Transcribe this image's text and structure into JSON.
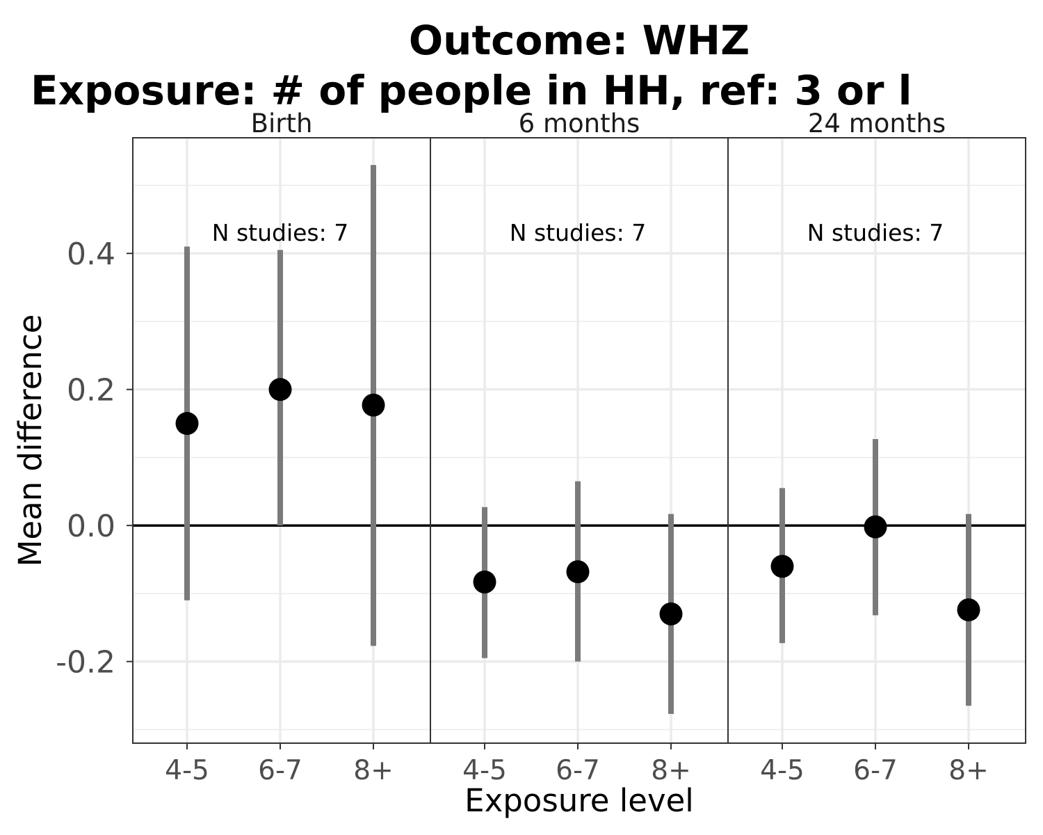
{
  "chart_data": {
    "type": "scatter",
    "title": "Outcome: WHZ",
    "subtitle": "Exposure: # of people in HH, ref: 3 or l",
    "xlabel": "Exposure level",
    "ylabel": "Mean difference",
    "ylim": [
      -0.32,
      0.57
    ],
    "y_ticks": [
      -0.2,
      0.0,
      0.2,
      0.4
    ],
    "y_tick_labels": [
      "-0.2",
      "0.0",
      "0.2",
      "0.4"
    ],
    "reference_line": 0.0,
    "grid": true,
    "categories": [
      "4-5",
      "6-7",
      "8+"
    ],
    "panels": [
      {
        "label": "Birth",
        "annotation": "N studies: 7",
        "points": [
          {
            "category": "4-5",
            "estimate": 0.15,
            "lower": -0.11,
            "upper": 0.41
          },
          {
            "category": "6-7",
            "estimate": 0.2,
            "lower": 0.0,
            "upper": 0.405
          },
          {
            "category": "8+",
            "estimate": 0.177,
            "lower": -0.177,
            "upper": 0.53
          }
        ]
      },
      {
        "label": "6 months",
        "annotation": "N studies: 7",
        "points": [
          {
            "category": "4-5",
            "estimate": -0.083,
            "lower": -0.195,
            "upper": 0.027
          },
          {
            "category": "6-7",
            "estimate": -0.068,
            "lower": -0.2,
            "upper": 0.065
          },
          {
            "category": "8+",
            "estimate": -0.13,
            "lower": -0.277,
            "upper": 0.017
          }
        ]
      },
      {
        "label": "24 months",
        "annotation": "N studies: 7",
        "points": [
          {
            "category": "4-5",
            "estimate": -0.06,
            "lower": -0.173,
            "upper": 0.055
          },
          {
            "category": "6-7",
            "estimate": -0.002,
            "lower": -0.132,
            "upper": 0.127
          },
          {
            "category": "8+",
            "estimate": -0.124,
            "lower": -0.265,
            "upper": 0.017
          }
        ]
      }
    ],
    "colors": {
      "point": "#000000",
      "interval": "#7a7a7a",
      "grid": "#ebebeb",
      "border": "#333333"
    }
  }
}
